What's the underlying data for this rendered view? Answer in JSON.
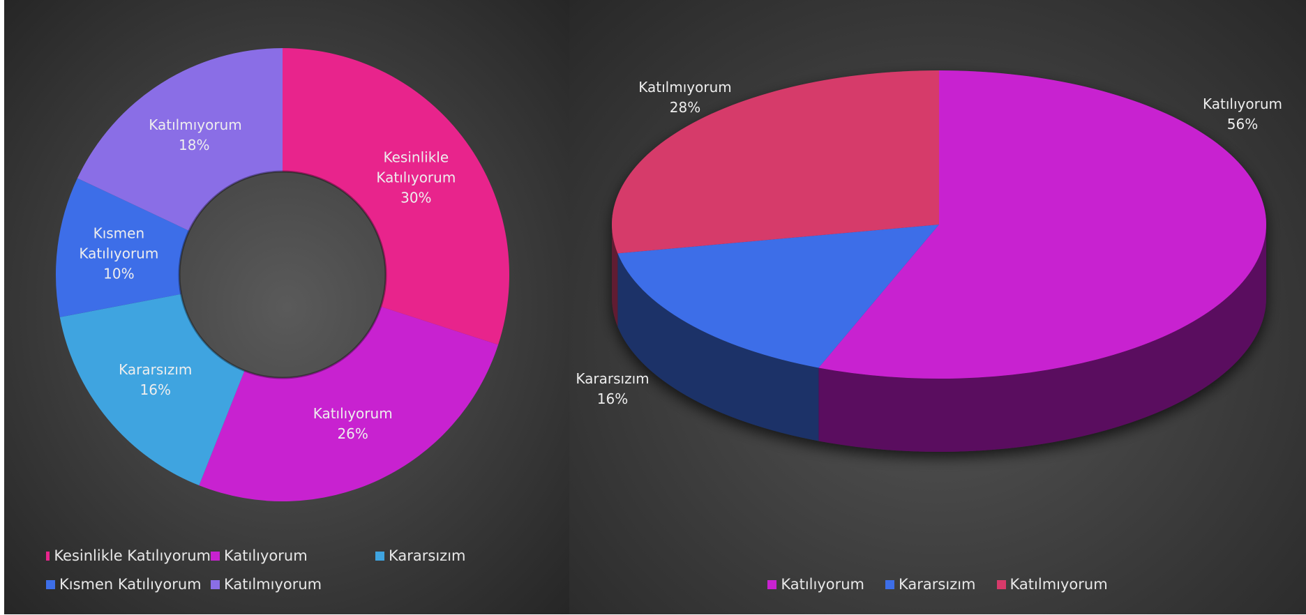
{
  "chart_data": [
    {
      "type": "donut",
      "categories": [
        "Kesinlikle Katılıyorum",
        "Katılıyorum",
        "Kararsızım",
        "Kısmen Katılıyorum",
        "Katılmıyorum"
      ],
      "values": [
        30,
        26,
        16,
        10,
        18
      ],
      "value_labels": [
        "30%",
        "26%",
        "16%",
        "10%",
        "18%"
      ],
      "colors": [
        "#e8248c",
        "#c822d0",
        "#3fa4e0",
        "#3d6ee8",
        "#8a6ee6"
      ],
      "legend": "bottom"
    },
    {
      "type": "pie3d",
      "categories": [
        "Katılıyorum",
        "Kararsızım",
        "Katılmıyorum"
      ],
      "values": [
        56,
        16,
        28
      ],
      "value_labels": [
        "56%",
        "16%",
        "28%"
      ],
      "colors": [
        "#c822d0",
        "#3d6ee8",
        "#d63a6a"
      ],
      "legend": "bottom"
    }
  ]
}
